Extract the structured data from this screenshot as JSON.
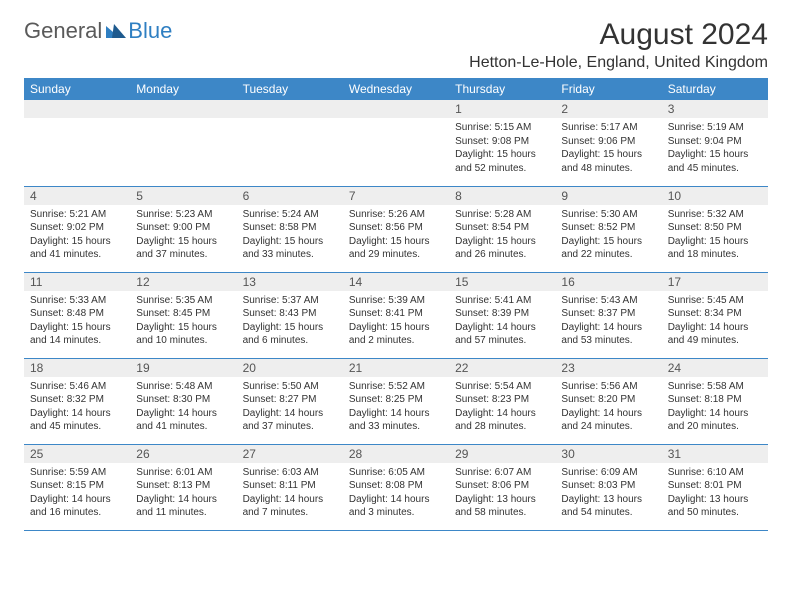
{
  "brand": {
    "part1": "General",
    "part2": "Blue"
  },
  "title": "August 2024",
  "location": "Hetton-Le-Hole, England, United Kingdom",
  "colors": {
    "header_bg": "#3d87c7",
    "header_fg": "#ffffff",
    "daynum_bg": "#eeeeee",
    "rule": "#3d87c7",
    "logo_gray": "#5a5a5a",
    "logo_blue": "#2f7fc2",
    "text": "#333333",
    "page_bg": "#ffffff"
  },
  "typography": {
    "font_family": "Arial, Helvetica, sans-serif",
    "title_fontsize": 30,
    "location_fontsize": 16,
    "dow_fontsize": 12,
    "daynum_fontsize": 12,
    "cell_fontsize": 10
  },
  "layout": {
    "columns": 7,
    "weeks": 5,
    "first_day_column": 4
  },
  "dow": [
    "Sunday",
    "Monday",
    "Tuesday",
    "Wednesday",
    "Thursday",
    "Friday",
    "Saturday"
  ],
  "days": [
    {
      "n": "1",
      "sr": "5:15 AM",
      "ss": "9:08 PM",
      "dl": "15 hours and 52 minutes."
    },
    {
      "n": "2",
      "sr": "5:17 AM",
      "ss": "9:06 PM",
      "dl": "15 hours and 48 minutes."
    },
    {
      "n": "3",
      "sr": "5:19 AM",
      "ss": "9:04 PM",
      "dl": "15 hours and 45 minutes."
    },
    {
      "n": "4",
      "sr": "5:21 AM",
      "ss": "9:02 PM",
      "dl": "15 hours and 41 minutes."
    },
    {
      "n": "5",
      "sr": "5:23 AM",
      "ss": "9:00 PM",
      "dl": "15 hours and 37 minutes."
    },
    {
      "n": "6",
      "sr": "5:24 AM",
      "ss": "8:58 PM",
      "dl": "15 hours and 33 minutes."
    },
    {
      "n": "7",
      "sr": "5:26 AM",
      "ss": "8:56 PM",
      "dl": "15 hours and 29 minutes."
    },
    {
      "n": "8",
      "sr": "5:28 AM",
      "ss": "8:54 PM",
      "dl": "15 hours and 26 minutes."
    },
    {
      "n": "9",
      "sr": "5:30 AM",
      "ss": "8:52 PM",
      "dl": "15 hours and 22 minutes."
    },
    {
      "n": "10",
      "sr": "5:32 AM",
      "ss": "8:50 PM",
      "dl": "15 hours and 18 minutes."
    },
    {
      "n": "11",
      "sr": "5:33 AM",
      "ss": "8:48 PM",
      "dl": "15 hours and 14 minutes."
    },
    {
      "n": "12",
      "sr": "5:35 AM",
      "ss": "8:45 PM",
      "dl": "15 hours and 10 minutes."
    },
    {
      "n": "13",
      "sr": "5:37 AM",
      "ss": "8:43 PM",
      "dl": "15 hours and 6 minutes."
    },
    {
      "n": "14",
      "sr": "5:39 AM",
      "ss": "8:41 PM",
      "dl": "15 hours and 2 minutes."
    },
    {
      "n": "15",
      "sr": "5:41 AM",
      "ss": "8:39 PM",
      "dl": "14 hours and 57 minutes."
    },
    {
      "n": "16",
      "sr": "5:43 AM",
      "ss": "8:37 PM",
      "dl": "14 hours and 53 minutes."
    },
    {
      "n": "17",
      "sr": "5:45 AM",
      "ss": "8:34 PM",
      "dl": "14 hours and 49 minutes."
    },
    {
      "n": "18",
      "sr": "5:46 AM",
      "ss": "8:32 PM",
      "dl": "14 hours and 45 minutes."
    },
    {
      "n": "19",
      "sr": "5:48 AM",
      "ss": "8:30 PM",
      "dl": "14 hours and 41 minutes."
    },
    {
      "n": "20",
      "sr": "5:50 AM",
      "ss": "8:27 PM",
      "dl": "14 hours and 37 minutes."
    },
    {
      "n": "21",
      "sr": "5:52 AM",
      "ss": "8:25 PM",
      "dl": "14 hours and 33 minutes."
    },
    {
      "n": "22",
      "sr": "5:54 AM",
      "ss": "8:23 PM",
      "dl": "14 hours and 28 minutes."
    },
    {
      "n": "23",
      "sr": "5:56 AM",
      "ss": "8:20 PM",
      "dl": "14 hours and 24 minutes."
    },
    {
      "n": "24",
      "sr": "5:58 AM",
      "ss": "8:18 PM",
      "dl": "14 hours and 20 minutes."
    },
    {
      "n": "25",
      "sr": "5:59 AM",
      "ss": "8:15 PM",
      "dl": "14 hours and 16 minutes."
    },
    {
      "n": "26",
      "sr": "6:01 AM",
      "ss": "8:13 PM",
      "dl": "14 hours and 11 minutes."
    },
    {
      "n": "27",
      "sr": "6:03 AM",
      "ss": "8:11 PM",
      "dl": "14 hours and 7 minutes."
    },
    {
      "n": "28",
      "sr": "6:05 AM",
      "ss": "8:08 PM",
      "dl": "14 hours and 3 minutes."
    },
    {
      "n": "29",
      "sr": "6:07 AM",
      "ss": "8:06 PM",
      "dl": "13 hours and 58 minutes."
    },
    {
      "n": "30",
      "sr": "6:09 AM",
      "ss": "8:03 PM",
      "dl": "13 hours and 54 minutes."
    },
    {
      "n": "31",
      "sr": "6:10 AM",
      "ss": "8:01 PM",
      "dl": "13 hours and 50 minutes."
    }
  ],
  "labels": {
    "sunrise": "Sunrise:",
    "sunset": "Sunset:",
    "daylight": "Daylight:"
  }
}
